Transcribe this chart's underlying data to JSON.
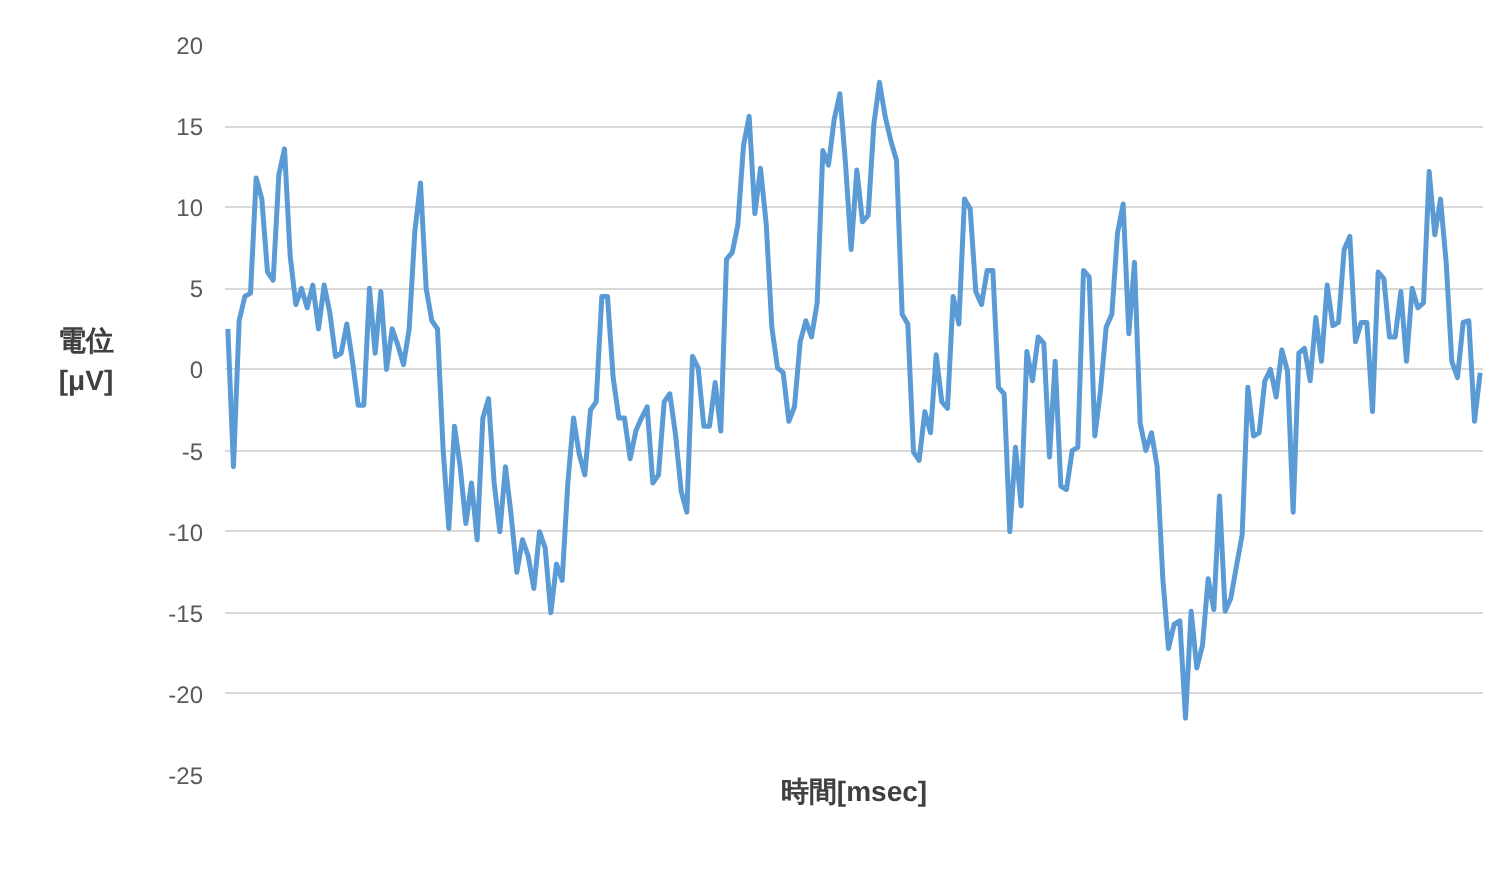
{
  "chart_data": {
    "type": "line",
    "xlabel": "時間[msec]",
    "ylabel": "電位[μV]",
    "categories": [
      null,
      null,
      null,
      null,
      null,
      null,
      null,
      null,
      null,
      null,
      null,
      null,
      null,
      null,
      null,
      null,
      null,
      null,
      null,
      null,
      null,
      null,
      null,
      null,
      null,
      null,
      null,
      null,
      null,
      null,
      null,
      null,
      null,
      null,
      null,
      null,
      null,
      null,
      null,
      null,
      null,
      null,
      null,
      null,
      null,
      null,
      null,
      null,
      null,
      null,
      null,
      null,
      null,
      null,
      null,
      null,
      null,
      null,
      null,
      null,
      null,
      null,
      null,
      null,
      null,
      null,
      null,
      null,
      null,
      null,
      null,
      null,
      null,
      null,
      null,
      null,
      null,
      null,
      null,
      null,
      null,
      null,
      null,
      null,
      null,
      null,
      null,
      null,
      null,
      null,
      null,
      null,
      null,
      null,
      null,
      null,
      null,
      null,
      null,
      null,
      null,
      null,
      null,
      null,
      null,
      null,
      null,
      null,
      null,
      null,
      null,
      null,
      null,
      null,
      null,
      null,
      null,
      null,
      null,
      null,
      null,
      null,
      null,
      null,
      null,
      null,
      null,
      null,
      null,
      null,
      null,
      null,
      null,
      null,
      null,
      null,
      null,
      null,
      null,
      null,
      null,
      null,
      null,
      null,
      null,
      null,
      null,
      null,
      null,
      null,
      null,
      null,
      null,
      null,
      null,
      null,
      null,
      null,
      null,
      null,
      null,
      null,
      null,
      null,
      null,
      null,
      null,
      null,
      null,
      null,
      null,
      null,
      null,
      null,
      null,
      null,
      null,
      null,
      null,
      null,
      null,
      null,
      null,
      null,
      null,
      null,
      null,
      null,
      null,
      null,
      null,
      null,
      null,
      null,
      null,
      null,
      null,
      null,
      null,
      null,
      null,
      null,
      null,
      null,
      null,
      null,
      null,
      null,
      null,
      null,
      null,
      null,
      null,
      null,
      null,
      null,
      null,
      null,
      null,
      null,
      null,
      null
    ],
    "series": [
      {
        "color": "#5b9bd5",
        "values": [
          2.5,
          -6,
          3,
          4.5,
          4.7,
          11.8,
          10.5,
          6,
          5.5,
          12,
          13.6,
          7,
          4,
          5,
          3.8,
          5.2,
          2.5,
          5.2,
          3.5,
          0.8,
          1,
          2.8,
          0.5,
          -2.2,
          -2.2,
          5,
          1,
          4.8,
          0,
          2.5,
          1.5,
          0.3,
          2.5,
          8.5,
          11.5,
          5,
          3,
          2.5,
          -5,
          -9.8,
          -3.5,
          -6,
          -9.5,
          -7,
          -10.5,
          -3,
          -1.8,
          -7,
          -10,
          -6,
          -9,
          -12.5,
          -10.5,
          -11.5,
          -13.5,
          -10,
          -11,
          -15,
          -12,
          -13,
          -7,
          -3,
          -5.2,
          -6.5,
          -2.5,
          -2,
          4.5,
          4.5,
          -0.5,
          -3,
          -3,
          -5.5,
          -3.8,
          -3,
          -2.3,
          -7,
          -6.5,
          -2,
          -1.5,
          -4,
          -7.5,
          -8.8,
          0.8,
          0.1,
          -3.5,
          -3.5,
          -0.8,
          -3.8,
          6.8,
          7.2,
          8.9,
          13.8,
          15.6,
          9.6,
          12.4,
          9,
          2.6,
          0.1,
          -0.2,
          -3.2,
          -2.3,
          1.7,
          3,
          2,
          4.1,
          13.5,
          12.6,
          15.4,
          17,
          12.7,
          7.4,
          12.3,
          9.1,
          9.5,
          15.1,
          17.7,
          15.6,
          14.1,
          12.9,
          3.4,
          2.8,
          -5.1,
          -5.6,
          -2.6,
          -3.9,
          0.9,
          -2,
          -2.4,
          4.5,
          2.8,
          10.5,
          9.9,
          4.8,
          4,
          6.1,
          6.1,
          -1.1,
          -1.5,
          -10,
          -4.8,
          -8.4,
          1.1,
          -0.7,
          2,
          1.6,
          -5.4,
          0.5,
          -7.2,
          -7.4,
          -5,
          -4.8,
          6.1,
          5.7,
          -4.1,
          -1.3,
          2.6,
          3.4,
          8.4,
          10.2,
          2.2,
          6.6,
          -3.3,
          -5,
          -3.9,
          -6,
          -12.9,
          -17.2,
          -15.7,
          -15.5,
          -21.5,
          -14.9,
          -18.4,
          -17,
          -12.9,
          -14.8,
          -7.8,
          -14.9,
          -14.1,
          -12.1,
          -10.2,
          -1.1,
          -4.1,
          -3.9,
          -0.7,
          0,
          -1.7,
          1.2,
          -0.1,
          -8.8,
          1,
          1.3,
          -0.7,
          3.2,
          0.5,
          5.2,
          2.7,
          2.9,
          7.4,
          8.2,
          1.7,
          2.9,
          2.9,
          -2.6,
          6,
          5.6,
          2,
          2,
          4.8,
          0.5,
          5,
          3.8,
          4.1,
          12.2,
          8.3,
          10.5,
          6.6,
          0.5,
          -0.5,
          2.9,
          3,
          -3.2,
          -0.2
        ]
      }
    ],
    "ylim": [
      -25,
      20
    ],
    "yticks": [
      -25,
      -20,
      -15,
      -10,
      -5,
      0,
      5,
      10,
      15,
      20
    ],
    "grid": "y",
    "marker": "none",
    "line_style": "solid",
    "tick_labels": "y"
  }
}
